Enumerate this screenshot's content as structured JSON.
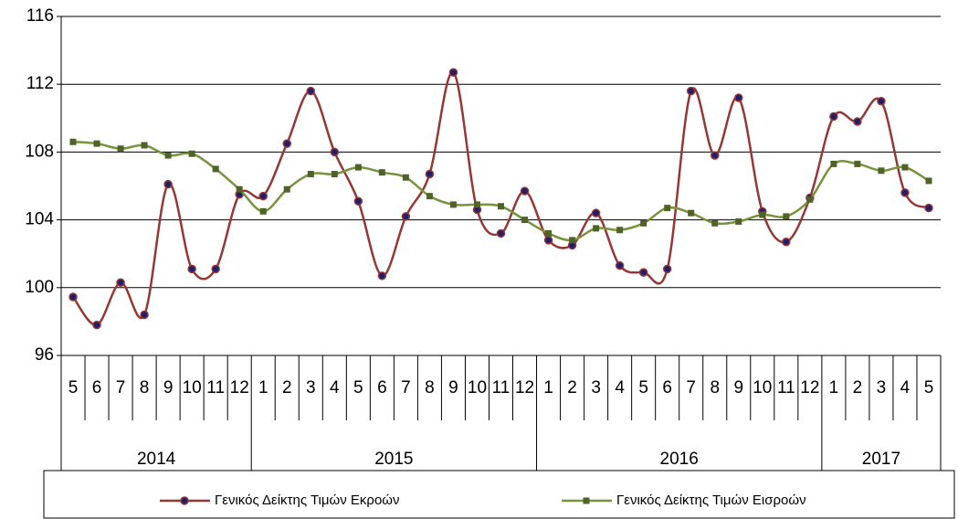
{
  "chart_data": {
    "type": "line",
    "category_groups": [
      {
        "name": "2014",
        "categories": [
          "5",
          "6",
          "7",
          "8",
          "9",
          "10",
          "11",
          "12"
        ]
      },
      {
        "name": "2015",
        "categories": [
          "1",
          "2",
          "3",
          "4",
          "5",
          "6",
          "7",
          "8",
          "9",
          "10",
          "11",
          "12"
        ]
      },
      {
        "name": "2016",
        "categories": [
          "1",
          "2",
          "3",
          "4",
          "5",
          "6",
          "7",
          "8",
          "9",
          "10",
          "11",
          "12"
        ]
      },
      {
        "name": "2017",
        "categories": [
          "1",
          "2",
          "3",
          "4",
          "5"
        ]
      }
    ],
    "series": [
      {
        "name": "Γενικός Δείκτης Τιμών Εκροών",
        "color": "#953735",
        "marker_color": "#1f1f6e",
        "marker": "circle",
        "values": [
          99.45,
          97.8,
          100.3,
          98.4,
          106.1,
          101.1,
          101.1,
          105.5,
          105.4,
          108.5,
          111.6,
          108.0,
          105.1,
          100.7,
          104.2,
          106.7,
          112.7,
          104.6,
          103.2,
          105.7,
          102.8,
          102.5,
          104.4,
          101.3,
          100.9,
          101.1,
          111.6,
          107.8,
          111.2,
          104.5,
          102.7,
          105.3,
          110.1,
          109.8,
          111.0,
          105.6,
          104.7
        ]
      },
      {
        "name": "Γενικός Δείκτης Τιμών Εισροών",
        "color": "#77933c",
        "marker_color": "#4f6228",
        "marker": "square",
        "values": [
          108.6,
          108.5,
          108.2,
          108.4,
          107.8,
          107.9,
          107.0,
          105.8,
          104.5,
          105.8,
          106.7,
          106.7,
          107.1,
          106.8,
          106.5,
          105.4,
          104.9,
          104.9,
          104.8,
          104.0,
          103.2,
          102.8,
          103.5,
          103.4,
          103.8,
          104.7,
          104.4,
          103.8,
          103.9,
          104.3,
          104.2,
          105.2,
          107.3,
          107.3,
          106.9,
          107.1,
          106.3
        ]
      }
    ],
    "ylim": [
      96,
      116
    ],
    "yticks": [
      96,
      100,
      104,
      108,
      112,
      116
    ],
    "grid": true
  }
}
